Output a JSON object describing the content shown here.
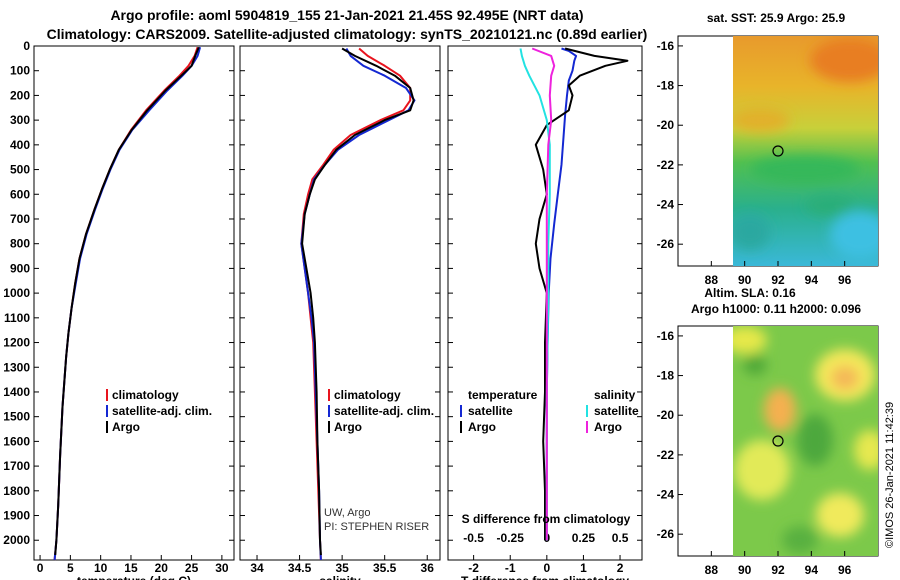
{
  "header": {
    "line1": "Argo profile: aoml 5904819_155 21-Jan-2021 21.45S 92.495E (NRT data)",
    "line2": "Climatology: CARS2009. Satellite-adjusted climatology: synTS_20210121.nc (0.89d earlier)"
  },
  "colors": {
    "climatology": "#e8141e",
    "satellite": "#1428d2",
    "argo": "#000000",
    "sat_temp": "#22e2e2",
    "sat_sal": "#ee22dd"
  },
  "axes": {
    "depth_ticks": [
      "0",
      "100",
      "200",
      "300",
      "400",
      "500",
      "600",
      "700",
      "800",
      "900",
      "1000",
      "1100",
      "1200",
      "1300",
      "1400",
      "1500",
      "1600",
      "1700",
      "1800",
      "1900",
      "2000"
    ]
  },
  "chart_data": [
    {
      "type": "line",
      "title": "",
      "xlabel": "temperature (deg C)",
      "ylabel": "depth",
      "xlim": [
        -1,
        32
      ],
      "ylim": [
        2080,
        0
      ],
      "xticks": [
        "0",
        "5",
        "10",
        "15",
        "20",
        "25",
        "30"
      ],
      "legend": [
        "climatology",
        "satellite-adj. clim.",
        "Argo"
      ],
      "series": [
        {
          "name": "climatology",
          "x": [
            26.0,
            25.5,
            24.5,
            23.0,
            20.5,
            17.5,
            15.0,
            13.0,
            11.5,
            10.2,
            9.0,
            7.6,
            6.5,
            5.8,
            5.2,
            4.7,
            4.3,
            3.7,
            3.3,
            3.0,
            2.7,
            2.4
          ],
          "depth": [
            5,
            40,
            80,
            120,
            180,
            260,
            340,
            420,
            500,
            580,
            660,
            760,
            860,
            960,
            1060,
            1160,
            1260,
            1460,
            1660,
            1860,
            2000,
            2080
          ]
        },
        {
          "name": "satellite-adj. clim.",
          "x": [
            26.4,
            26.0,
            25.0,
            23.5,
            21.0,
            18.0,
            15.2,
            13.1,
            11.6,
            10.3,
            9.1,
            7.7,
            6.6,
            5.9,
            5.2,
            4.7,
            4.3,
            3.7,
            3.3,
            3.0,
            2.7,
            2.4
          ],
          "depth": [
            5,
            40,
            80,
            120,
            180,
            260,
            340,
            420,
            500,
            580,
            660,
            760,
            860,
            960,
            1060,
            1160,
            1260,
            1460,
            1660,
            1860,
            2000,
            2080
          ]
        },
        {
          "name": "Argo",
          "x": [
            26.2,
            25.6,
            25.0,
            23.3,
            20.7,
            17.7,
            15.1,
            13.0,
            11.5,
            10.2,
            9.0,
            7.6,
            6.5,
            5.8,
            5.2,
            4.7,
            4.3,
            3.7,
            3.3,
            3.0,
            2.7,
            2.5
          ],
          "depth": [
            5,
            40,
            80,
            120,
            180,
            260,
            340,
            420,
            500,
            580,
            660,
            760,
            860,
            960,
            1060,
            1160,
            1260,
            1460,
            1660,
            1860,
            2000,
            2060
          ]
        }
      ]
    },
    {
      "type": "line",
      "title": "",
      "xlabel": "salinity",
      "ylabel": "depth",
      "xlim": [
        33.8,
        36.15
      ],
      "ylim": [
        2080,
        0
      ],
      "xticks": [
        "34",
        "34.5",
        "35",
        "35.5",
        "36"
      ],
      "legend": [
        "climatology",
        "satellite-adj. clim.",
        "Argo"
      ],
      "annotations": [
        "UW, Argo",
        "PI: STEPHEN RISER"
      ],
      "series": [
        {
          "name": "climatology",
          "x": [
            35.2,
            35.3,
            35.5,
            35.68,
            35.8,
            35.8,
            35.72,
            35.45,
            35.1,
            34.9,
            34.78,
            34.65,
            34.6,
            34.55,
            34.52,
            34.56,
            34.6,
            34.63,
            34.66,
            34.68,
            34.7,
            34.72,
            34.74,
            34.75
          ],
          "depth": [
            10,
            40,
            80,
            120,
            170,
            220,
            260,
            300,
            360,
            420,
            480,
            540,
            600,
            680,
            800,
            900,
            1000,
            1100,
            1200,
            1400,
            1600,
            1800,
            2000,
            2080
          ]
        },
        {
          "name": "satellite-adj. clim.",
          "x": [
            35.05,
            35.1,
            35.25,
            35.5,
            35.75,
            35.85,
            35.78,
            35.55,
            35.2,
            34.95,
            34.8,
            34.67,
            34.62,
            34.56,
            34.52,
            34.56,
            34.6,
            34.64,
            34.67,
            34.69,
            34.71,
            34.73,
            34.74,
            34.75
          ],
          "depth": [
            10,
            40,
            80,
            120,
            170,
            220,
            260,
            300,
            360,
            420,
            480,
            540,
            600,
            680,
            800,
            900,
            1000,
            1100,
            1200,
            1400,
            1600,
            1800,
            2000,
            2080
          ]
        },
        {
          "name": "Argo",
          "x": [
            35.0,
            35.15,
            35.4,
            35.62,
            35.8,
            35.84,
            35.8,
            35.5,
            35.15,
            34.93,
            34.8,
            34.68,
            34.62,
            34.56,
            34.53,
            34.58,
            34.63,
            34.66,
            34.68,
            34.7,
            34.71,
            34.73,
            34.74,
            34.75
          ],
          "depth": [
            10,
            40,
            80,
            120,
            170,
            220,
            260,
            300,
            360,
            420,
            480,
            540,
            600,
            680,
            800,
            900,
            1000,
            1100,
            1200,
            1400,
            1600,
            1800,
            2000,
            2060
          ]
        }
      ]
    },
    {
      "type": "line",
      "title": "",
      "xlabel": "T difference from climatology",
      "ylabel": "depth",
      "xlim": [
        -2.7,
        2.6
      ],
      "ylim": [
        2080,
        0
      ],
      "xticks": [
        "-2",
        "-1",
        "0",
        "1",
        "2"
      ],
      "top_xlabel": "S difference from climatology",
      "top_xticks": [
        "-0.5",
        "-0.25",
        "0",
        "0.25",
        "0.5"
      ],
      "legend_temperature": [
        "satellite",
        "Argo"
      ],
      "legend_salinity": [
        "satellite",
        "Argo"
      ],
      "legend_headers": [
        "temperature",
        "salinity"
      ],
      "series": [
        {
          "name": "temperature satellite",
          "x": [
            0.4,
            0.6,
            0.8,
            0.75,
            0.7,
            0.6,
            0.55,
            0.5,
            0.45,
            0.4,
            0.3,
            0.2,
            0.1,
            0.05,
            0.02,
            0.0,
            0.0,
            0.0,
            0.0
          ],
          "depth": [
            10,
            20,
            40,
            60,
            100,
            140,
            200,
            280,
            380,
            480,
            600,
            720,
            860,
            1000,
            1200,
            1400,
            1600,
            1800,
            2000
          ]
        },
        {
          "name": "temperature Argo",
          "x": [
            0.5,
            1.3,
            2.2,
            1.6,
            0.9,
            0.6,
            0.7,
            0.6,
            0.0,
            -0.3,
            -0.1,
            0.0,
            -0.2,
            -0.3,
            -0.2,
            0.0,
            -0.05,
            -0.05,
            -0.1,
            -0.05,
            -0.05
          ],
          "depth": [
            10,
            40,
            60,
            80,
            120,
            160,
            200,
            260,
            320,
            400,
            500,
            600,
            700,
            800,
            900,
            1000,
            1200,
            1400,
            1600,
            1800,
            2000
          ]
        },
        {
          "name": "salinity satellite",
          "x": [
            -0.18,
            -0.17,
            -0.15,
            -0.12,
            -0.05,
            0.0,
            0.02,
            0.02,
            0.02,
            0.01,
            0.01,
            0.0,
            0.0
          ],
          "depth": [
            10,
            40,
            80,
            120,
            200,
            300,
            400,
            500,
            600,
            800,
            1000,
            1400,
            2000
          ]
        },
        {
          "name": "salinity Argo",
          "x": [
            -0.1,
            0.03,
            0.05,
            0.03,
            0.02,
            0.03,
            0.01,
            0.0,
            0.0,
            0.0,
            0.0
          ],
          "depth": [
            10,
            40,
            80,
            120,
            200,
            300,
            400,
            600,
            1000,
            1400,
            2000
          ]
        }
      ]
    }
  ],
  "maps": [
    {
      "title": "sat. SST: 25.9 Argo: 25.9",
      "xticks": [
        "88",
        "90",
        "92",
        "94",
        "96"
      ],
      "yticks": [
        "-16",
        "-18",
        "-20",
        "-22",
        "-24",
        "-26"
      ],
      "marker": {
        "lon": 92.495,
        "lat": -21.45
      }
    },
    {
      "title_line1": "Altim. SLA: 0.16",
      "title_line2": "Argo h1000: 0.11 h2000: 0.096",
      "xticks": [
        "88",
        "90",
        "92",
        "94",
        "96"
      ],
      "yticks": [
        "-16",
        "-18",
        "-20",
        "-22",
        "-24",
        "-26"
      ],
      "marker": {
        "lon": 92.495,
        "lat": -21.45
      }
    }
  ],
  "footer": {
    "credit": "©IMOS 26-Jan-2021 11:42:39"
  }
}
